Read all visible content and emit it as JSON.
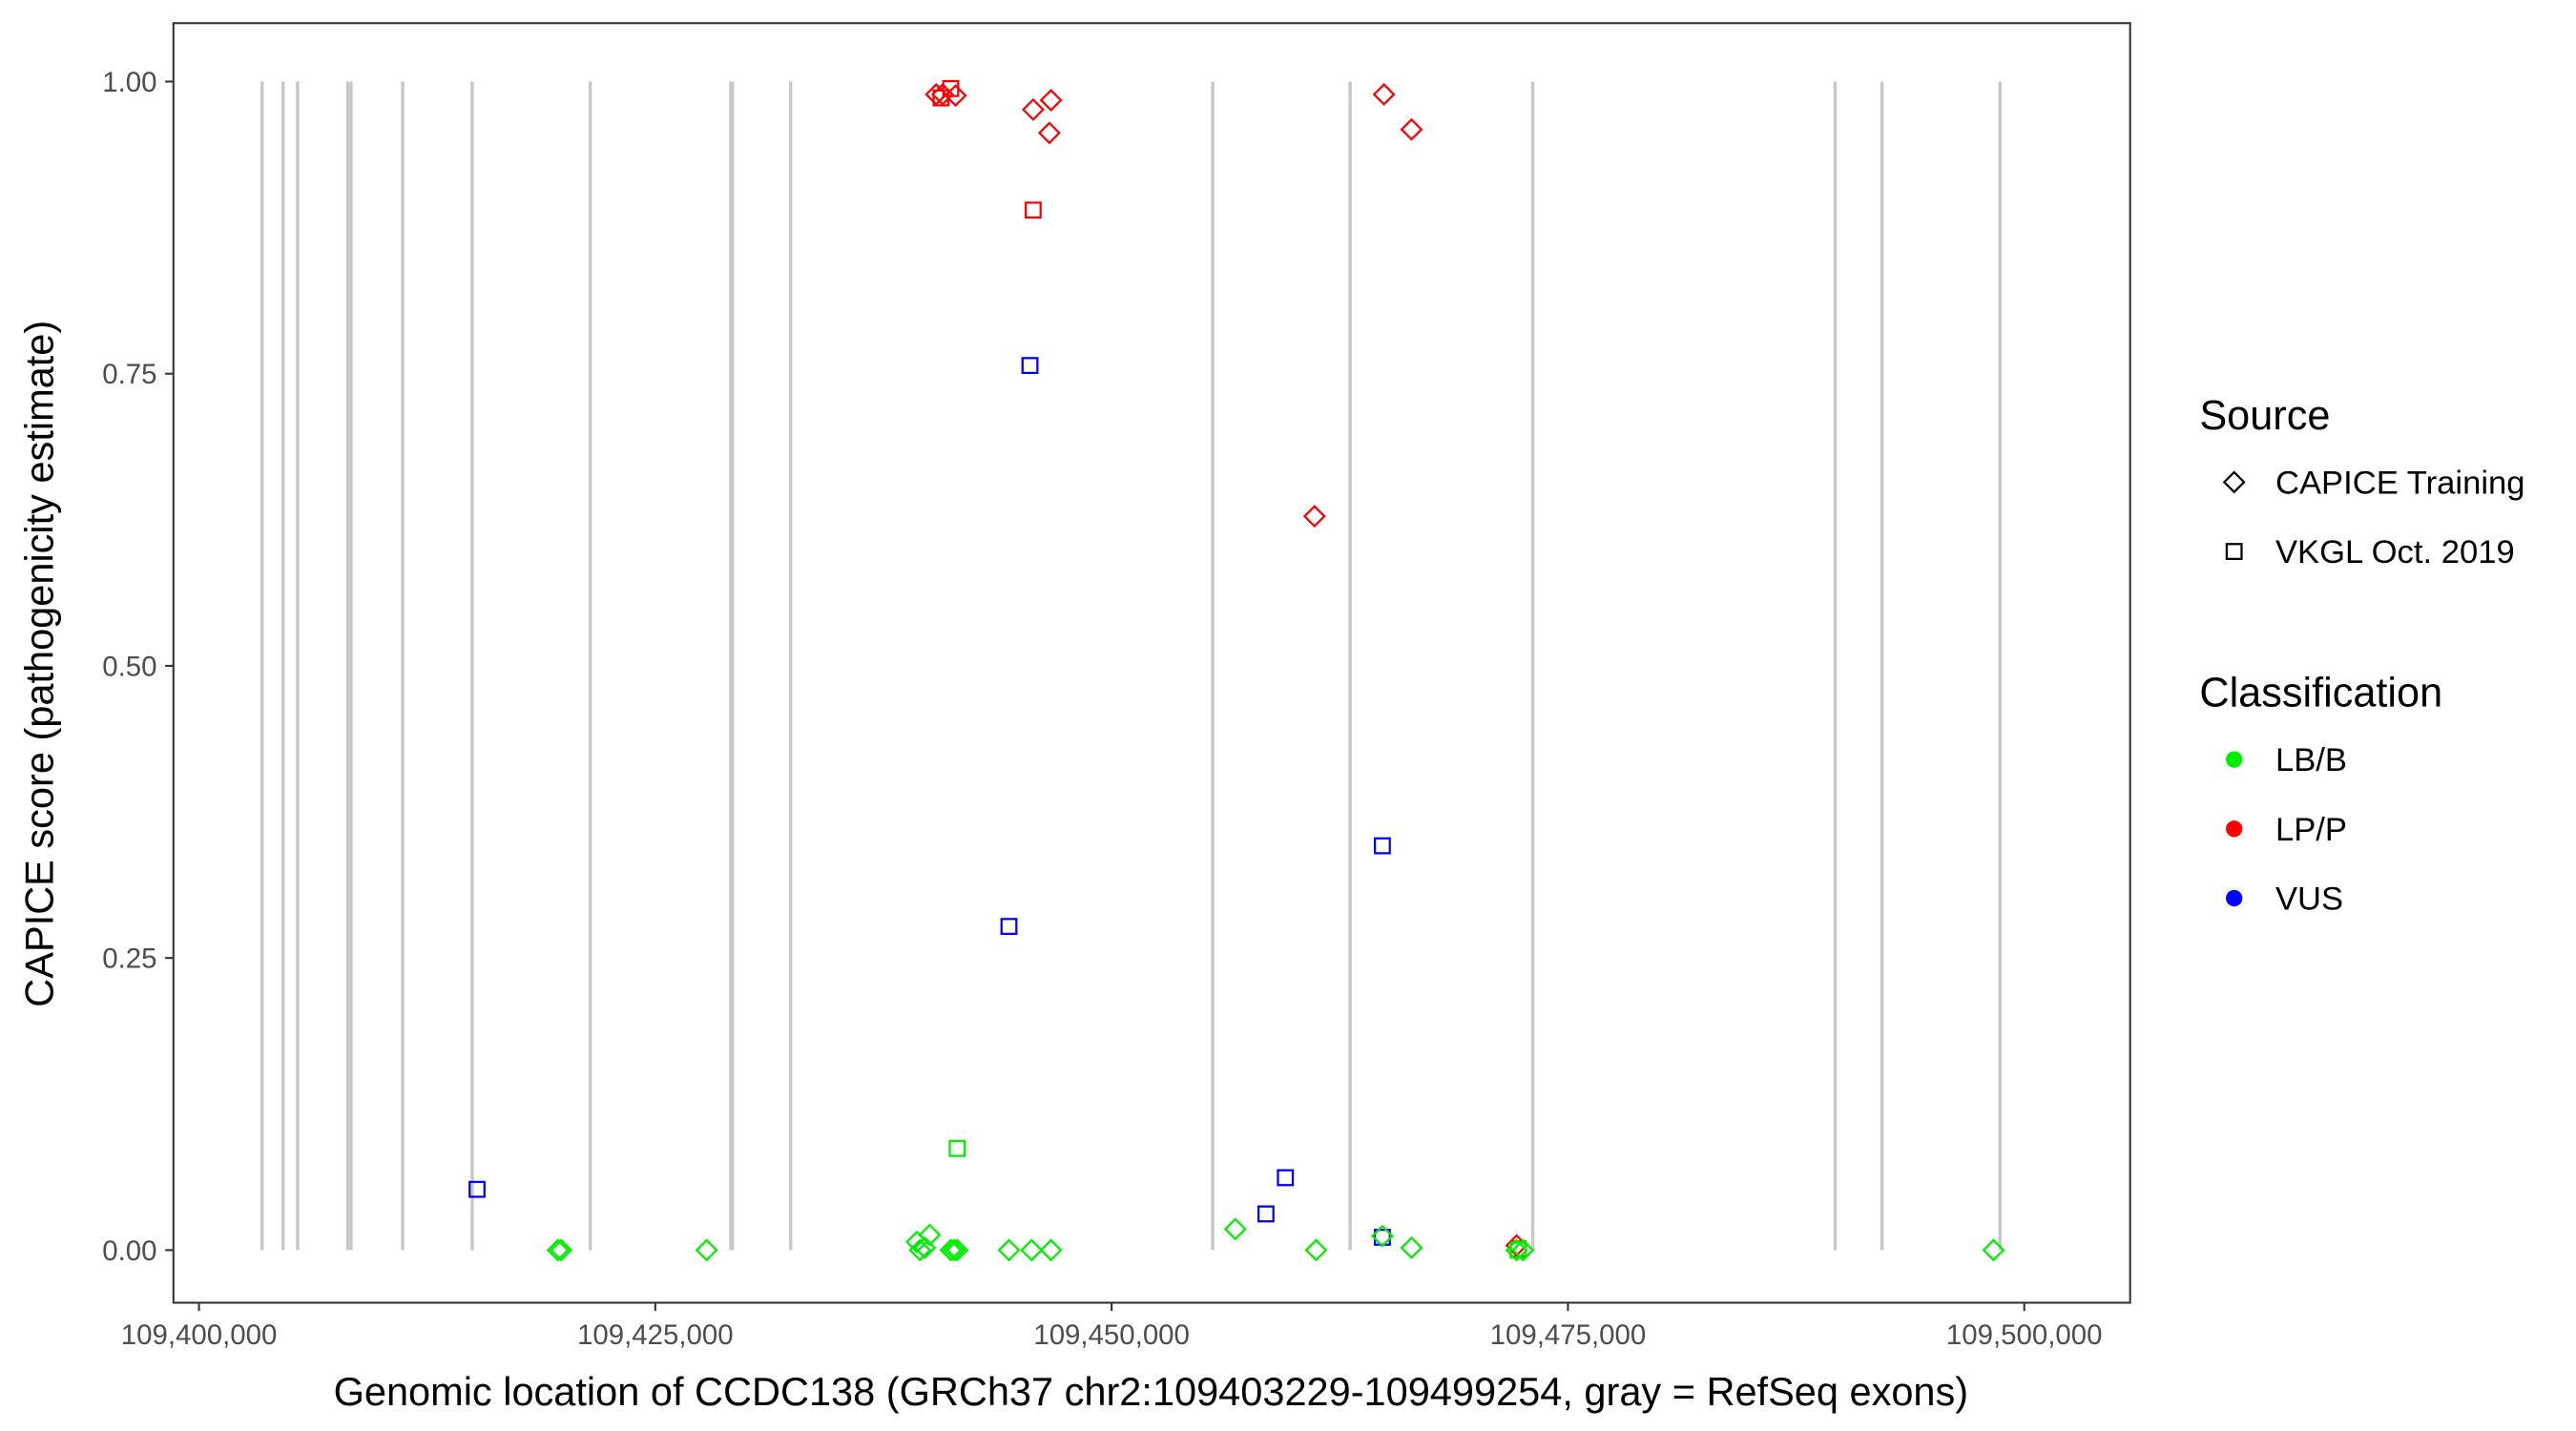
{
  "chart_data": {
    "type": "scatter",
    "xlabel": "Genomic location of CCDC138 (GRCh37 chr2:109403229-109499254, gray = RefSeq exons)",
    "ylabel": "CAPICE score (pathogenicity estimate)",
    "xlim": [
      109398600,
      109505800
    ],
    "ylim": [
      -0.045,
      1.05
    ],
    "x_ticks": [
      109400000,
      109425000,
      109450000,
      109475000,
      109500000
    ],
    "x_tick_labels": [
      "109,400,000",
      "109,425,000",
      "109,450,000",
      "109,475,000",
      "109,500,000"
    ],
    "y_ticks": [
      0,
      0.25,
      0.5,
      0.75,
      1.0
    ],
    "y_tick_labels": [
      "0.00",
      "0.25",
      "0.50",
      "0.75",
      "1.00"
    ],
    "grid": false,
    "exon_color": "#c8c8c8",
    "exon_lines": [
      109403454,
      109404606,
      109405403,
      109408150,
      109408330,
      109411160,
      109414969,
      109421435,
      109429140,
      109429230,
      109432418,
      109455536,
      109463065,
      109473073,
      109489637,
      109492206,
      109498672
    ],
    "legend": {
      "placement": "right",
      "source_title": "Source",
      "source_entries": [
        {
          "label": "CAPICE Training",
          "shape": "diamond"
        },
        {
          "label": "VKGL Oct. 2019",
          "shape": "square"
        }
      ],
      "class_title": "Classification",
      "class_entries": [
        {
          "label": "LB/B",
          "color": "#00ee00"
        },
        {
          "label": "LP/P",
          "color": "#ff0000"
        },
        {
          "label": "VUS",
          "color": "#0000ff"
        }
      ]
    },
    "points": [
      {
        "x": 109440388,
        "y": 0.989,
        "source": "CAPICE Training",
        "class": "LP/P"
      },
      {
        "x": 109440742,
        "y": 0.989,
        "source": "CAPICE Training",
        "class": "LP/P"
      },
      {
        "x": 109441451,
        "y": 0.988,
        "source": "CAPICE Training",
        "class": "LP/P"
      },
      {
        "x": 109445703,
        "y": 0.976,
        "source": "CAPICE Training",
        "class": "LP/P"
      },
      {
        "x": 109446678,
        "y": 0.984,
        "source": "CAPICE Training",
        "class": "LP/P"
      },
      {
        "x": 109446589,
        "y": 0.956,
        "source": "CAPICE Training",
        "class": "LP/P"
      },
      {
        "x": 109464922,
        "y": 0.989,
        "source": "CAPICE Training",
        "class": "LP/P"
      },
      {
        "x": 109466430,
        "y": 0.959,
        "source": "CAPICE Training",
        "class": "LP/P"
      },
      {
        "x": 109461115,
        "y": 0.628,
        "source": "CAPICE Training",
        "class": "LP/P"
      },
      {
        "x": 109472187,
        "y": 0.004,
        "source": "CAPICE Training",
        "class": "LP/P"
      },
      {
        "x": 109441186,
        "y": 0.994,
        "source": "VKGL Oct. 2019",
        "class": "LP/P"
      },
      {
        "x": 109440654,
        "y": 0.986,
        "source": "VKGL Oct. 2019",
        "class": "LP/P"
      },
      {
        "x": 109445703,
        "y": 0.89,
        "source": "VKGL Oct. 2019",
        "class": "LP/P"
      },
      {
        "x": 109472275,
        "y": 0.001,
        "source": "VKGL Oct. 2019",
        "class": "LP/P"
      },
      {
        "x": 109445526,
        "y": 0.757,
        "source": "VKGL Oct. 2019",
        "class": "VUS"
      },
      {
        "x": 109444375,
        "y": 0.277,
        "source": "VKGL Oct. 2019",
        "class": "VUS"
      },
      {
        "x": 109464834,
        "y": 0.346,
        "source": "VKGL Oct. 2019",
        "class": "VUS"
      },
      {
        "x": 109415234,
        "y": 0.052,
        "source": "VKGL Oct. 2019",
        "class": "VUS"
      },
      {
        "x": 109459519,
        "y": 0.062,
        "source": "VKGL Oct. 2019",
        "class": "VUS"
      },
      {
        "x": 109458456,
        "y": 0.031,
        "source": "VKGL Oct. 2019",
        "class": "VUS"
      },
      {
        "x": 109464834,
        "y": 0.011,
        "source": "VKGL Oct. 2019",
        "class": "VUS"
      },
      {
        "x": 109441540,
        "y": 0.087,
        "source": "VKGL Oct. 2019",
        "class": "LB/B"
      },
      {
        "x": 109472275,
        "y": 0.0,
        "source": "VKGL Oct. 2019",
        "class": "LB/B"
      },
      {
        "x": 109419663,
        "y": 0.0,
        "source": "CAPICE Training",
        "class": "LB/B"
      },
      {
        "x": 109419840,
        "y": 0.0,
        "source": "CAPICE Training",
        "class": "LB/B"
      },
      {
        "x": 109427811,
        "y": 0.0,
        "source": "CAPICE Training",
        "class": "LB/B"
      },
      {
        "x": 109439326,
        "y": 0.007,
        "source": "CAPICE Training",
        "class": "LB/B"
      },
      {
        "x": 109439503,
        "y": 0.0,
        "source": "CAPICE Training",
        "class": "LB/B"
      },
      {
        "x": 109439769,
        "y": 0.002,
        "source": "CAPICE Training",
        "class": "LB/B"
      },
      {
        "x": 109440034,
        "y": 0.013,
        "source": "CAPICE Training",
        "class": "LB/B"
      },
      {
        "x": 109441186,
        "y": 0.0,
        "source": "CAPICE Training",
        "class": "LB/B"
      },
      {
        "x": 109441363,
        "y": 0.0,
        "source": "CAPICE Training",
        "class": "LB/B"
      },
      {
        "x": 109441540,
        "y": 0.0,
        "source": "CAPICE Training",
        "class": "LB/B"
      },
      {
        "x": 109444375,
        "y": 0.0,
        "source": "CAPICE Training",
        "class": "LB/B"
      },
      {
        "x": 109445615,
        "y": 0.0,
        "source": "CAPICE Training",
        "class": "LB/B"
      },
      {
        "x": 109446678,
        "y": 0.0,
        "source": "CAPICE Training",
        "class": "LB/B"
      },
      {
        "x": 109456775,
        "y": 0.018,
        "source": "CAPICE Training",
        "class": "LB/B"
      },
      {
        "x": 109461204,
        "y": 0.0,
        "source": "CAPICE Training",
        "class": "LB/B"
      },
      {
        "x": 109464834,
        "y": 0.012,
        "source": "CAPICE Training",
        "class": "LB/B"
      },
      {
        "x": 109466430,
        "y": 0.002,
        "source": "CAPICE Training",
        "class": "LB/B"
      },
      {
        "x": 109472187,
        "y": 0.0,
        "source": "CAPICE Training",
        "class": "LB/B"
      },
      {
        "x": 109472541,
        "y": 0.0,
        "source": "CAPICE Training",
        "class": "LB/B"
      },
      {
        "x": 109498317,
        "y": 0.0,
        "source": "CAPICE Training",
        "class": "LB/B"
      }
    ]
  }
}
